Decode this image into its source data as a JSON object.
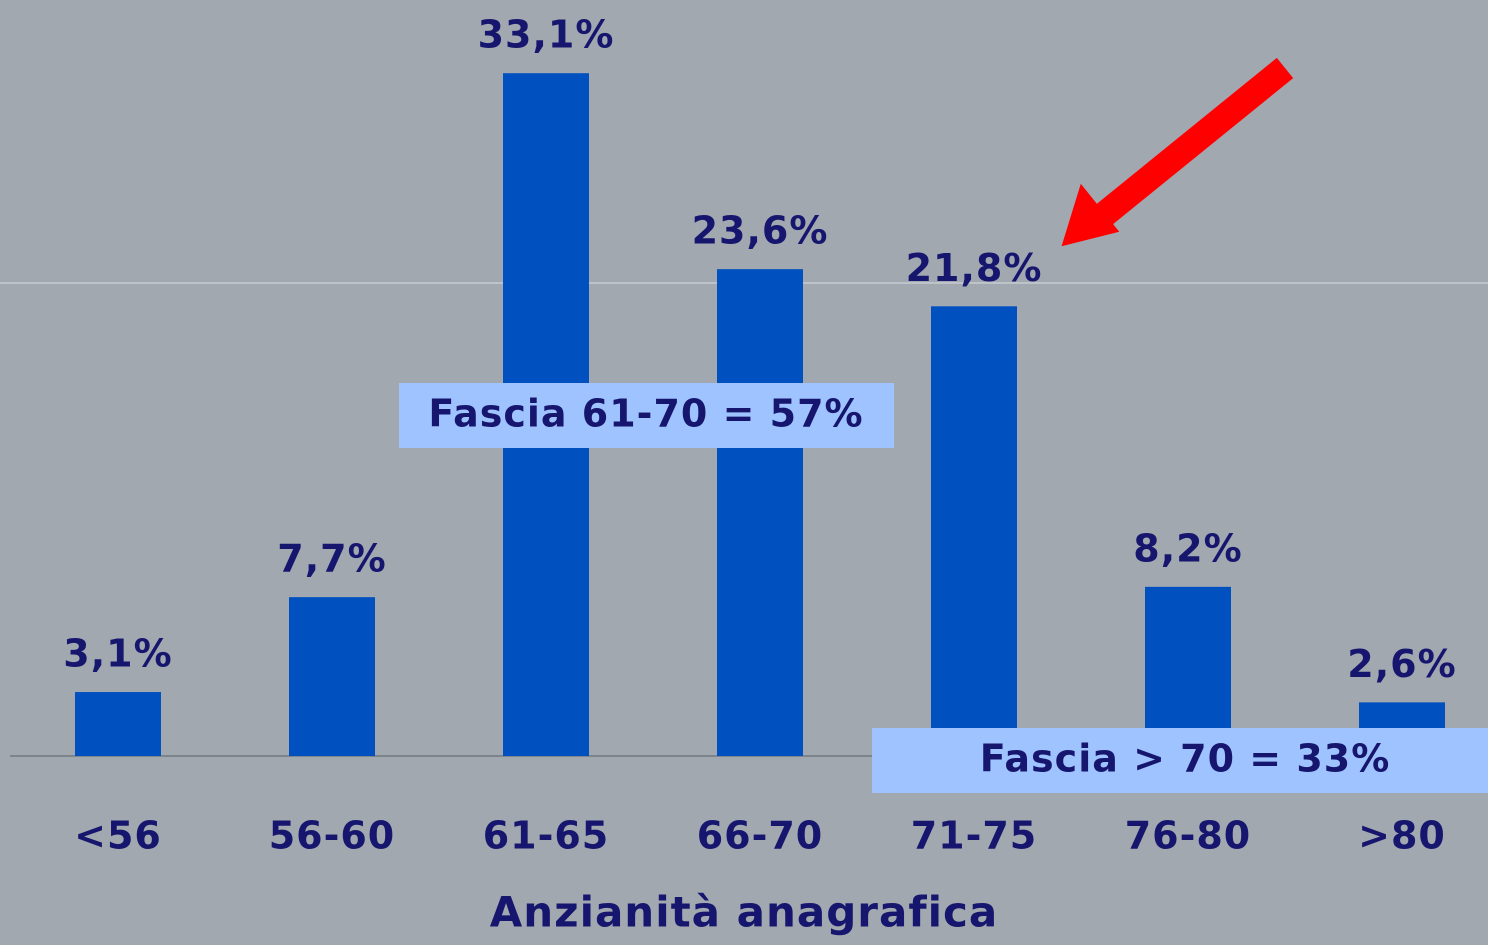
{
  "chart_data": {
    "type": "bar",
    "xlabel": "Anzianità anagrafica",
    "categories": [
      "<56",
      "56-60",
      "61-65",
      "66-70",
      "71-75",
      "76-80",
      ">80"
    ],
    "values": [
      3.1,
      7.7,
      33.1,
      23.6,
      21.8,
      8.2,
      2.6
    ],
    "value_labels": [
      "3,1%",
      "7,7%",
      "33,1%",
      "23,6%",
      "21,8%",
      "8,2%",
      "2,6%"
    ],
    "color": "#0050c0",
    "ylim": [
      0,
      36.6
    ],
    "annotations": [
      "Fascia 61-70 = 57%",
      "Fascia > 70 = 33%"
    ]
  }
}
